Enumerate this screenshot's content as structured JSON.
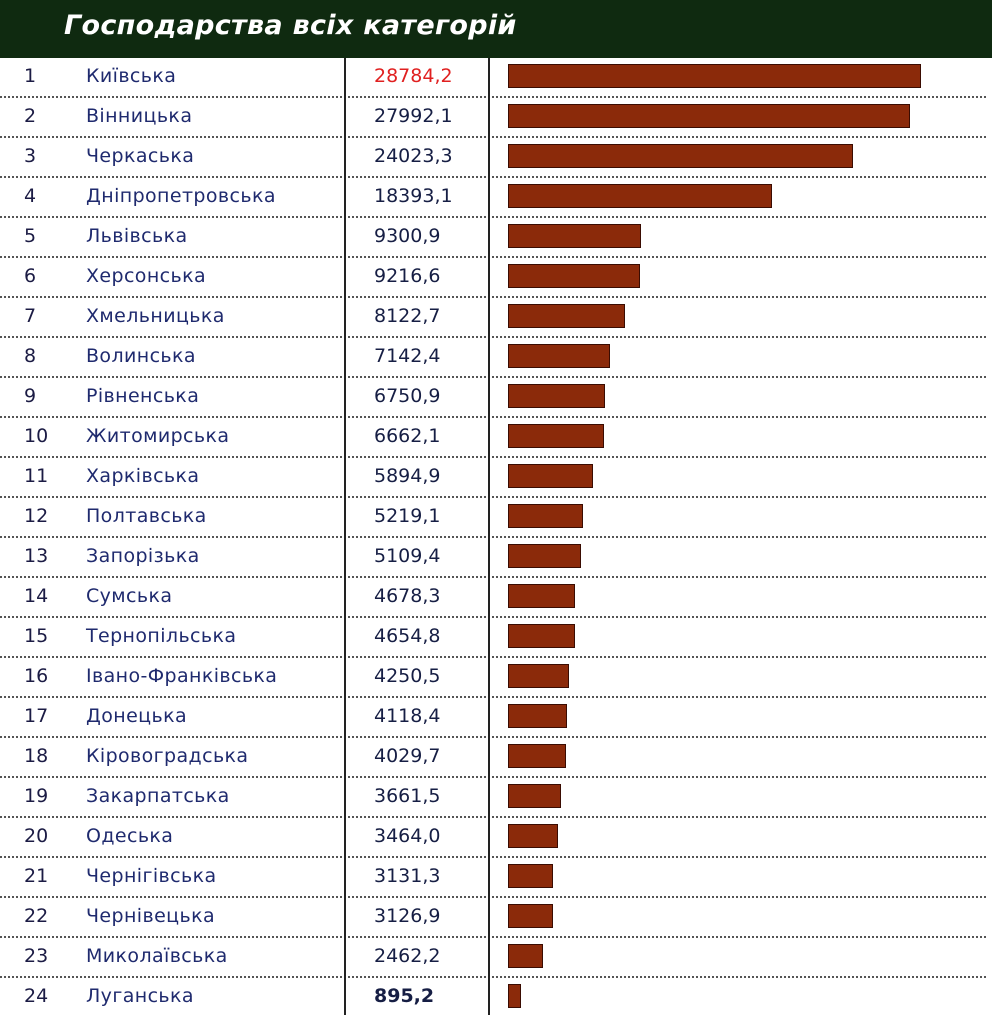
{
  "title": "Господарства всіх категорій",
  "colors": {
    "header_bg": "#0f2a10",
    "bar": "#8b2a0a",
    "highlight_value": "#e02020",
    "text": "#1f2a6e"
  },
  "highlight_rank": 1,
  "bold_rank": 24,
  "chart_data": {
    "type": "bar",
    "orientation": "horizontal",
    "title": "Господарства всіх категорій",
    "rows": [
      {
        "rank": "1",
        "region": "Київська",
        "value_label": "28784,2",
        "value": 28784.2
      },
      {
        "rank": "2",
        "region": "Вінницька",
        "value_label": "27992,1",
        "value": 27992.1
      },
      {
        "rank": "3",
        "region": "Черкаська",
        "value_label": "24023,3",
        "value": 24023.3
      },
      {
        "rank": "4",
        "region": "Дніпропетровська",
        "value_label": "18393,1",
        "value": 18393.1
      },
      {
        "rank": "5",
        "region": "Львівська",
        "value_label": "9300,9",
        "value": 9300.9
      },
      {
        "rank": "6",
        "region": "Херсонська",
        "value_label": "9216,6",
        "value": 9216.6
      },
      {
        "rank": "7",
        "region": "Хмельницька",
        "value_label": "8122,7",
        "value": 8122.7
      },
      {
        "rank": "8",
        "region": "Волинська",
        "value_label": "7142,4",
        "value": 7142.4
      },
      {
        "rank": "9",
        "region": "Рівненська",
        "value_label": "6750,9",
        "value": 6750.9
      },
      {
        "rank": "10",
        "region": "Житомирська",
        "value_label": "6662,1",
        "value": 6662.1
      },
      {
        "rank": "11",
        "region": "Харківська",
        "value_label": "5894,9",
        "value": 5894.9
      },
      {
        "rank": "12",
        "region": "Полтавська",
        "value_label": "5219,1",
        "value": 5219.1
      },
      {
        "rank": "13",
        "region": "Запорізька",
        "value_label": "5109,4",
        "value": 5109.4
      },
      {
        "rank": "14",
        "region": "Сумська",
        "value_label": "4678,3",
        "value": 4678.3
      },
      {
        "rank": "15",
        "region": "Тернопільська",
        "value_label": "4654,8",
        "value": 4654.8
      },
      {
        "rank": "16",
        "region": "Івано-Франківська",
        "value_label": "4250,5",
        "value": 4250.5
      },
      {
        "rank": "17",
        "region": "Донецька",
        "value_label": "4118,4",
        "value": 4118.4
      },
      {
        "rank": "18",
        "region": "Кіровоградська",
        "value_label": "4029,7",
        "value": 4029.7
      },
      {
        "rank": "19",
        "region": "Закарпатська",
        "value_label": "3661,5",
        "value": 3661.5
      },
      {
        "rank": "20",
        "region": "Одеська",
        "value_label": "3464,0",
        "value": 3464.0
      },
      {
        "rank": "21",
        "region": "Чернігівська",
        "value_label": "3131,3",
        "value": 3131.3
      },
      {
        "rank": "22",
        "region": "Чернівецька",
        "value_label": "3126,9",
        "value": 3126.9
      },
      {
        "rank": "23",
        "region": "Миколаївська",
        "value_label": "2462,2",
        "value": 2462.2
      },
      {
        "rank": "24",
        "region": "Луганська",
        "value_label": "895,2",
        "value": 895.2
      }
    ],
    "xlim": [
      0,
      28784.2
    ],
    "grid": false,
    "legend": "none"
  }
}
